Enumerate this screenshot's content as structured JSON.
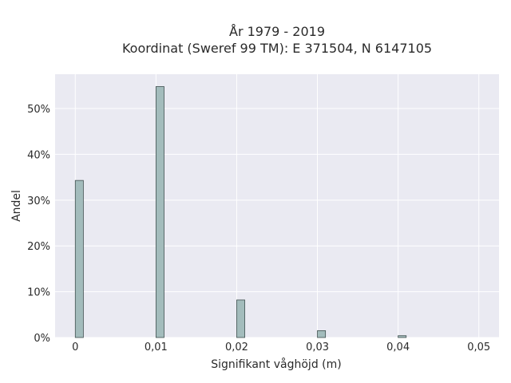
{
  "chart_data": {
    "type": "bar",
    "title_line1": "År 1979 - 2019",
    "title_line2": "Koordinat (Sweref 99 TM): E 371504, N 6147105",
    "xlabel": "Signifikant våghöjd (m)",
    "ylabel": "Andel",
    "x_ticks": [
      "0",
      "0,01",
      "0,02",
      "0,03",
      "0,04",
      "0,05"
    ],
    "y_ticks": [
      "0%",
      "10%",
      "20%",
      "30%",
      "40%",
      "50%"
    ],
    "xlim": [
      -0.0025,
      0.0525
    ],
    "ylim": [
      0,
      0.575
    ],
    "bin_width": 0.001,
    "x": [
      0.0,
      0.01,
      0.02,
      0.03,
      0.04
    ],
    "values": [
      0.343,
      0.548,
      0.082,
      0.015,
      0.004
    ],
    "grid": true,
    "bar_color": "#a3bcbc",
    "bar_edge_color": "#3f4f4f",
    "plot_bg": "#eaeaf2"
  }
}
